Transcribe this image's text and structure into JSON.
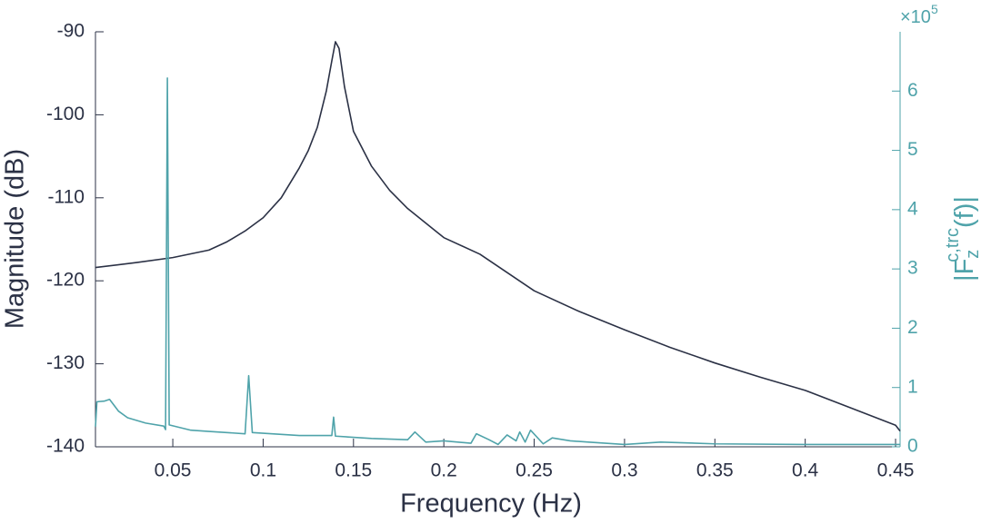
{
  "chart_data": {
    "type": "line",
    "xlabel": "Frequency (Hz)",
    "ylabel": "Magnitude (dB)",
    "y2label": {
      "parts": [
        "|F",
        "z",
        "c,trc",
        "(f)|"
      ]
    },
    "y2_scale": {
      "base": "×10",
      "exponent": "5"
    },
    "xlim": [
      0.0072,
      0.4525
    ],
    "xticks": [
      0.05,
      0.1,
      0.15,
      0.2,
      0.25,
      0.3,
      0.35,
      0.4,
      0.45
    ],
    "ylim": [
      -140,
      -90
    ],
    "yticks": [
      -140,
      -130,
      -120,
      -110,
      -100,
      -90
    ],
    "y2lim": [
      0,
      7
    ],
    "y2ticks": [
      0,
      1,
      2,
      3,
      4,
      5,
      6
    ],
    "y_color": "#2b3145",
    "y2_color": "#4fa3aa",
    "series": [
      {
        "color": "#2b3145",
        "axis": "y",
        "x": [
          0.0072,
          0.03,
          0.05,
          0.07,
          0.08,
          0.09,
          0.1,
          0.11,
          0.12,
          0.125,
          0.13,
          0.135,
          0.138,
          0.14,
          0.142,
          0.145,
          0.15,
          0.16,
          0.17,
          0.18,
          0.2,
          0.22,
          0.25,
          0.275,
          0.3,
          0.325,
          0.35,
          0.375,
          0.4,
          0.425,
          0.45,
          0.4525
        ],
        "values": [
          -118.4,
          -117.8,
          -117.2,
          -116.3,
          -115.3,
          -114.0,
          -112.4,
          -110.0,
          -106.4,
          -104.3,
          -101.5,
          -97.1,
          -93.5,
          -91.2,
          -92.0,
          -96.6,
          -102.0,
          -106.2,
          -109.1,
          -111.3,
          -114.8,
          -116.8,
          -121.2,
          -123.7,
          -125.9,
          -128.0,
          -129.9,
          -131.6,
          -133.2,
          -135.3,
          -137.4,
          -138.1
        ]
      },
      {
        "color": "#4fa3aa",
        "axis": "y2",
        "x": [
          0.0072,
          0.008,
          0.012,
          0.015,
          0.02,
          0.025,
          0.035,
          0.045,
          0.046,
          0.047,
          0.048,
          0.06,
          0.07,
          0.09,
          0.092,
          0.094,
          0.12,
          0.138,
          0.139,
          0.14,
          0.16,
          0.18,
          0.184,
          0.19,
          0.2,
          0.215,
          0.218,
          0.225,
          0.23,
          0.235,
          0.24,
          0.242,
          0.245,
          0.248,
          0.255,
          0.26,
          0.27,
          0.28,
          0.3,
          0.32,
          0.35,
          0.4,
          0.45,
          0.4525
        ],
        "values": [
          0.34,
          0.76,
          0.77,
          0.8,
          0.6,
          0.49,
          0.4,
          0.35,
          0.29,
          6.22,
          0.37,
          0.28,
          0.26,
          0.22,
          1.2,
          0.24,
          0.19,
          0.19,
          0.5,
          0.18,
          0.14,
          0.12,
          0.25,
          0.08,
          0.1,
          0.06,
          0.22,
          0.12,
          0.04,
          0.2,
          0.1,
          0.25,
          0.08,
          0.28,
          0.05,
          0.15,
          0.1,
          0.08,
          0.04,
          0.08,
          0.05,
          0.04,
          0.04,
          0.04
        ]
      }
    ]
  }
}
